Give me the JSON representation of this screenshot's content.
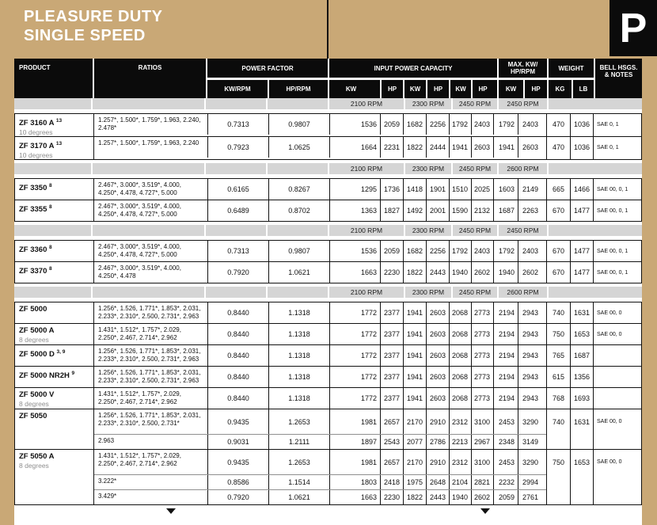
{
  "page": {
    "title_line1": "PLEASURE DUTY",
    "title_line2": "SINGLE SPEED",
    "tab_letter": "P"
  },
  "colors": {
    "tan": "#c9a876",
    "header_black": "#0b0b0b",
    "band_gray": "#d5d5d5",
    "border_black": "#121212"
  },
  "header": {
    "product": "PRODUCT",
    "ratios": "RATIOS",
    "power_factor": "POWER FACTOR",
    "kw_rpm": "KW/RPM",
    "hp_rpm": "HP/RPM",
    "input_power_capacity": "INPUT POWER CAPACITY",
    "kw": "KW",
    "hp": "HP",
    "max_line1": "MAX. KW/",
    "max_line2": "HP/RPM",
    "weight": "WEIGHT",
    "kg": "KG",
    "lb": "LB",
    "bell_line1": "BELL HSGS.",
    "bell_line2": "& NOTES"
  },
  "sections": [
    {
      "rpm_labels": [
        "2100 RPM",
        "2300 RPM",
        "2450 RPM",
        "2450 RPM"
      ],
      "groups": [
        {
          "name": "ZF 3160 A",
          "sup": "13",
          "sublabel": "10 degrees",
          "kg": "470",
          "lb": "1036",
          "notes": "SAE 0, 1",
          "rows": [
            {
              "ratios": "1.257*, 1.500*, 1.759*, 1.963, 2.240,\n2.478*",
              "kw_rpm": "0.7313",
              "hp_rpm": "0.9807",
              "values": [
                "1536",
                "2059",
                "1682",
                "2256",
                "1792",
                "2403",
                "1792",
                "2403"
              ],
              "lines": 2
            }
          ]
        },
        {
          "name": "ZF 3170 A",
          "sup": "13",
          "sublabel": "10 degrees",
          "kg": "470",
          "lb": "1036",
          "notes": "SAE 0, 1",
          "rows": [
            {
              "ratios": "1.257*, 1.500*, 1.759*, 1.963, 2.240",
              "kw_rpm": "0.7923",
              "hp_rpm": "1.0625",
              "values": [
                "1664",
                "2231",
                "1822",
                "2444",
                "1941",
                "2603",
                "1941",
                "2603"
              ],
              "lines": 2
            }
          ]
        }
      ]
    },
    {
      "rpm_labels": [
        "2100 RPM",
        "2300 RPM",
        "2450 RPM",
        "2600 RPM"
      ],
      "groups": [
        {
          "name": "ZF 3350",
          "sup": "8",
          "sublabel": "",
          "kg": "665",
          "lb": "1466",
          "notes": "SAE 00, 0, 1",
          "rows": [
            {
              "ratios": "2.467*, 3.000*, 3.519*, 4.000,\n4.250*, 4.478, 4.727*, 5.000",
              "kw_rpm": "0.6165",
              "hp_rpm": "0.8267",
              "values": [
                "1295",
                "1736",
                "1418",
                "1901",
                "1510",
                "2025",
                "1603",
                "2149"
              ],
              "lines": 2
            }
          ]
        },
        {
          "name": "ZF 3355",
          "sup": "8",
          "sublabel": "",
          "kg": "670",
          "lb": "1477",
          "notes": "SAE 00, 0, 1",
          "rows": [
            {
              "ratios": "2.467*, 3.000*, 3.519*, 4.000,\n4.250*, 4.478, 4.727*, 5.000",
              "kw_rpm": "0.6489",
              "hp_rpm": "0.8702",
              "values": [
                "1363",
                "1827",
                "1492",
                "2001",
                "1590",
                "2132",
                "1687",
                "2263"
              ],
              "lines": 2
            }
          ]
        }
      ]
    },
    {
      "rpm_labels": [
        "2100 RPM",
        "2300 RPM",
        "2450 RPM",
        "2450 RPM"
      ],
      "groups": [
        {
          "name": "ZF 3360",
          "sup": "8",
          "sublabel": "",
          "kg": "670",
          "lb": "1477",
          "notes": "SAE 00, 0, 1",
          "rows": [
            {
              "ratios": "2.467*, 3.000*, 3.519*, 4.000,\n4.250*, 4.478, 4.727*, 5.000",
              "kw_rpm": "0.7313",
              "hp_rpm": "0.9807",
              "values": [
                "1536",
                "2059",
                "1682",
                "2256",
                "1792",
                "2403",
                "1792",
                "2403"
              ],
              "lines": 2
            }
          ]
        },
        {
          "name": "ZF 3370",
          "sup": "8",
          "sublabel": "",
          "kg": "670",
          "lb": "1477",
          "notes": "SAE 00, 0, 1",
          "rows": [
            {
              "ratios": "2.467*, 3.000*, 3.519*, 4.000,\n4.250*, 4.478",
              "kw_rpm": "0.7920",
              "hp_rpm": "1.0621",
              "values": [
                "1663",
                "2230",
                "1822",
                "2443",
                "1940",
                "2602",
                "1940",
                "2602"
              ],
              "lines": 2
            }
          ]
        }
      ]
    },
    {
      "rpm_labels": [
        "2100 RPM",
        "2300 RPM",
        "2450 RPM",
        "2600 RPM"
      ],
      "groups": [
        {
          "name": "ZF 5000",
          "sup": "",
          "sublabel": "",
          "kg": "740",
          "lb": "1631",
          "notes": "SAE 00, 0",
          "rows": [
            {
              "ratios": "1.256*, 1.526, 1.771*, 1.853*, 2.031,\n2.233*, 2.310*, 2.500, 2.731*, 2.963",
              "kw_rpm": "0.8440",
              "hp_rpm": "1.1318",
              "values": [
                "1772",
                "2377",
                "1941",
                "2603",
                "2068",
                "2773",
                "2194",
                "2943"
              ],
              "lines": 2
            }
          ]
        },
        {
          "name": "ZF 5000 A",
          "sup": "",
          "sublabel": "8 degrees",
          "kg": "750",
          "lb": "1653",
          "notes": "SAE 00, 0",
          "rows": [
            {
              "ratios": "1.431*, 1.512*, 1.757*, 2.029,\n2.250*, 2.467, 2.714*, 2.962",
              "kw_rpm": "0.8440",
              "hp_rpm": "1.1318",
              "values": [
                "1772",
                "2377",
                "1941",
                "2603",
                "2068",
                "2773",
                "2194",
                "2943"
              ],
              "lines": 2
            }
          ]
        },
        {
          "name": "ZF 5000 D",
          "sup": "3, 9",
          "sublabel": "",
          "kg": "765",
          "lb": "1687",
          "notes": "",
          "rows": [
            {
              "ratios": "1.256*, 1.526, 1.771*, 1.853*, 2.031,\n2.233*, 2.310*, 2.500, 2.731*, 2.963",
              "kw_rpm": "0.8440",
              "hp_rpm": "1.1318",
              "values": [
                "1772",
                "2377",
                "1941",
                "2603",
                "2068",
                "2773",
                "2194",
                "2943"
              ],
              "lines": 2
            }
          ]
        },
        {
          "name": "ZF 5000 NR2H",
          "sup": "9",
          "sublabel": "",
          "kg": "615",
          "lb": "1356",
          "notes": "",
          "rows": [
            {
              "ratios": "1.256*, 1.526, 1.771*, 1.853*, 2.031,\n2.233*, 2.310*, 2.500, 2.731*, 2.963",
              "kw_rpm": "0.8440",
              "hp_rpm": "1.1318",
              "values": [
                "1772",
                "2377",
                "1941",
                "2603",
                "2068",
                "2773",
                "2194",
                "2943"
              ],
              "lines": 2
            }
          ]
        },
        {
          "name": "ZF 5000 V",
          "sup": "",
          "sublabel": "8 degrees",
          "kg": "768",
          "lb": "1693",
          "notes": "",
          "rows": [
            {
              "ratios": "1.431*, 1.512*, 1.757*, 2.029,\n2.250*, 2.467, 2.714*, 2.962",
              "kw_rpm": "0.8440",
              "hp_rpm": "1.1318",
              "values": [
                "1772",
                "2377",
                "1941",
                "2603",
                "2068",
                "2773",
                "2194",
                "2943"
              ],
              "lines": 2
            }
          ]
        },
        {
          "name": "ZF 5050",
          "sup": "",
          "sublabel": "",
          "kg": "740",
          "lb": "1631",
          "notes": "SAE 00, 0",
          "rows": [
            {
              "ratios": "1.256*, 1.526, 1.771*, 1.853*, 2.031,\n2.233*, 2.310*, 2.500, 2.731*",
              "kw_rpm": "0.9435",
              "hp_rpm": "1.2653",
              "values": [
                "1981",
                "2657",
                "2170",
                "2910",
                "2312",
                "3100",
                "2453",
                "3290"
              ],
              "lines": 2,
              "big": true
            },
            {
              "ratios": "2.963",
              "kw_rpm": "0.9031",
              "hp_rpm": "1.2111",
              "values": [
                "1897",
                "2543",
                "2077",
                "2786",
                "2213",
                "2967",
                "2348",
                "3149"
              ],
              "lines": 1
            }
          ]
        },
        {
          "name": "ZF 5050 A",
          "sup": "",
          "sublabel": "8 degrees",
          "kg": "750",
          "lb": "1653",
          "notes": "SAE 00, 0",
          "rows": [
            {
              "ratios": "1.431*, 1.512*, 1.757*, 2.029,\n2.250*, 2.467, 2.714*, 2.962",
              "kw_rpm": "0.9435",
              "hp_rpm": "1.2653",
              "values": [
                "1981",
                "2657",
                "2170",
                "2910",
                "2312",
                "3100",
                "2453",
                "3290"
              ],
              "lines": 2,
              "big": true
            },
            {
              "ratios": "3.222*",
              "kw_rpm": "0.8586",
              "hp_rpm": "1.1514",
              "values": [
                "1803",
                "2418",
                "1975",
                "2648",
                "2104",
                "2821",
                "2232",
                "2994"
              ],
              "lines": 1
            },
            {
              "ratios": "3.429*",
              "kw_rpm": "0.7920",
              "hp_rpm": "1.0621",
              "values": [
                "1663",
                "2230",
                "1822",
                "2443",
                "1940",
                "2602",
                "2059",
                "2761"
              ],
              "lines": 1
            }
          ]
        }
      ]
    }
  ]
}
